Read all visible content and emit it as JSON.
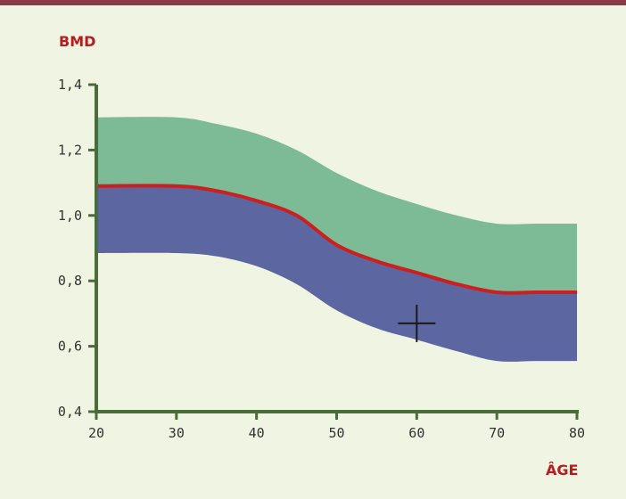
{
  "chart_data": {
    "type": "area",
    "xlabel": "ÂGE",
    "ylabel": "BMD",
    "xlim": [
      20,
      80
    ],
    "ylim": [
      0.4,
      1.4
    ],
    "x_ticks": [
      20,
      30,
      40,
      50,
      60,
      70,
      80
    ],
    "x_tick_labels": [
      "20",
      "30",
      "40",
      "50",
      "60",
      "70",
      "80"
    ],
    "y_ticks": [
      0.4,
      0.6,
      0.8,
      1.0,
      1.2,
      1.4
    ],
    "y_tick_labels": [
      "0,4",
      "0,6",
      "0,8",
      "1,0",
      "1,2",
      "1,4"
    ],
    "grid": false,
    "x": [
      20,
      30,
      35,
      40,
      45,
      50,
      55,
      60,
      65,
      70,
      75,
      80
    ],
    "bands": [
      {
        "upper": [
          1.3,
          1.3,
          1.28,
          1.25,
          1.2,
          1.13,
          1.075,
          1.035,
          1.0,
          0.975,
          0.975,
          0.975
        ],
        "lower": [
          1.09,
          1.09,
          1.075,
          1.045,
          1.0,
          0.91,
          0.86,
          0.825,
          0.79,
          0.765,
          0.765,
          0.765
        ],
        "color": "#7dba96"
      },
      {
        "upper": [
          1.09,
          1.09,
          1.075,
          1.045,
          1.0,
          0.91,
          0.86,
          0.825,
          0.79,
          0.765,
          0.765,
          0.765
        ],
        "lower": [
          0.885,
          0.885,
          0.875,
          0.845,
          0.79,
          0.71,
          0.655,
          0.62,
          0.585,
          0.555,
          0.555,
          0.555
        ],
        "color": "#5c66a0"
      }
    ],
    "series": [
      {
        "values": [
          1.09,
          1.09,
          1.075,
          1.045,
          1.0,
          0.91,
          0.86,
          0.825,
          0.79,
          0.765,
          0.765,
          0.765
        ],
        "color": "#cc1f1f"
      }
    ],
    "marker": {
      "x": 60,
      "y": 0.67,
      "shape": "cross",
      "color": "#1a1a1a"
    }
  },
  "colors": {
    "background": "#eff4e3",
    "top_rule": "#8b3a4a",
    "axis": "#4a6b3a",
    "tick_label": "#333333",
    "axis_title": "#b81c1c"
  }
}
